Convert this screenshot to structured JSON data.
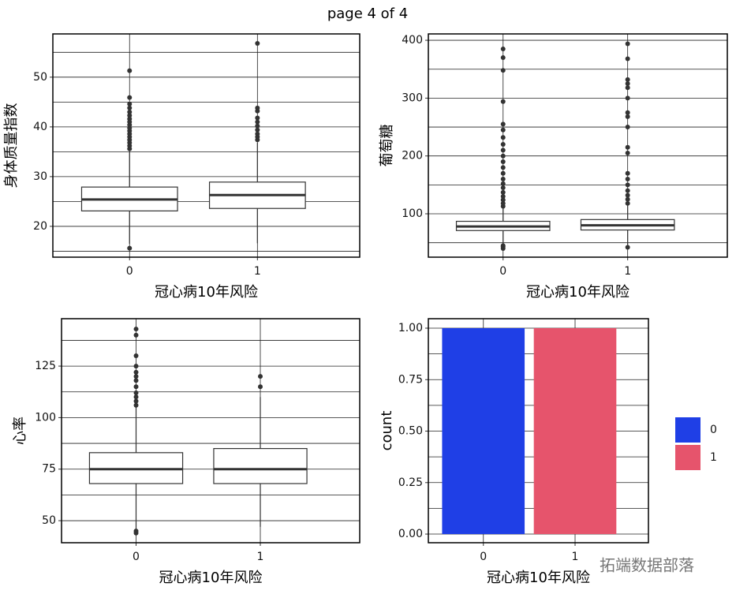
{
  "title": "page 4 of 4",
  "watermark": "拓端数据部落",
  "chart_data": [
    {
      "type": "boxplot",
      "xlabel": "冠心病10年风险",
      "ylabel": "身体质量指数",
      "categories": [
        "0",
        "1"
      ],
      "boxes": [
        {
          "whisker_low": 16.5,
          "q1": 23.1,
          "median": 25.4,
          "q3": 27.9,
          "whisker_high": 35.1,
          "outliers": [
            15.6,
            35.6,
            36.2,
            36.8,
            37.4,
            38.0,
            38.6,
            39.2,
            39.8,
            40.4,
            41.0,
            41.6,
            42.3,
            43.0,
            43.8,
            44.6,
            45.9,
            51.3
          ]
        },
        {
          "whisker_low": 16.6,
          "q1": 23.6,
          "median": 26.3,
          "q3": 28.9,
          "whisker_high": 36.8,
          "outliers": [
            37.4,
            38.0,
            38.6,
            39.4,
            40.2,
            41.0,
            41.8,
            43.2,
            43.8,
            56.8
          ]
        }
      ],
      "box_color": "#333333",
      "ylim": [
        13.8,
        58.7
      ],
      "yticks": [
        20,
        30,
        40,
        50
      ],
      "minor_yticks": [
        15,
        25,
        35,
        45,
        55
      ],
      "grid": true
    },
    {
      "type": "boxplot",
      "xlabel": "冠心病10年风险",
      "ylabel": "葡萄糖",
      "categories": [
        "0",
        "1"
      ],
      "boxes": [
        {
          "whisker_low": 47,
          "q1": 71,
          "median": 78,
          "q3": 87,
          "whisker_high": 110,
          "outliers": [
            40,
            43,
            45,
            113,
            118,
            124,
            130,
            137,
            145,
            152,
            160,
            170,
            180,
            190,
            200,
            210,
            220,
            232,
            245,
            255,
            294,
            348,
            370,
            385
          ]
        },
        {
          "whisker_low": 45,
          "q1": 72,
          "median": 80,
          "q3": 90,
          "whisker_high": 115,
          "outliers": [
            42,
            118,
            125,
            132,
            140,
            150,
            160,
            170,
            205,
            215,
            250,
            268,
            275,
            300,
            318,
            325,
            332,
            368,
            394
          ]
        }
      ],
      "box_color": "#333333",
      "ylim": [
        25,
        411
      ],
      "yticks": [
        100,
        200,
        300,
        400
      ],
      "minor_yticks": [
        50,
        150,
        250,
        350
      ],
      "grid": true
    },
    {
      "type": "boxplot",
      "xlabel": "冠心病10年风险",
      "ylabel": "心率",
      "categories": [
        "0",
        "1"
      ],
      "boxes": [
        {
          "whisker_low": 46,
          "q1": 68,
          "median": 75,
          "q3": 83,
          "whisker_high": 105,
          "outliers": [
            44,
            45,
            106,
            108,
            110,
            112,
            115,
            118,
            120,
            122,
            125,
            130,
            140,
            143
          ]
        },
        {
          "whisker_low": 47,
          "q1": 68,
          "median": 75,
          "q3": 85,
          "whisker_high": 110,
          "outliers": [
            115,
            120
          ]
        }
      ],
      "box_color": "#333333",
      "ylim": [
        39.3,
        148
      ],
      "yticks": [
        50,
        75,
        100,
        125
      ],
      "minor_yticks": [
        62.5,
        87.5,
        112.5,
        137.5
      ],
      "grid": true
    },
    {
      "type": "bar",
      "xlabel": "冠心病10年风险",
      "ylabel": "count",
      "categories": [
        "0",
        "1"
      ],
      "values": [
        1,
        1
      ],
      "colors": [
        "#1f3fe6",
        "#e6546c"
      ],
      "ylim": [
        -0.042,
        1.046
      ],
      "yticks": [
        {
          "value": 0,
          "label": "0.00"
        },
        {
          "value": 0.25,
          "label": "0.25"
        },
        {
          "value": 0.5,
          "label": "0.50"
        },
        {
          "value": 0.75,
          "label": "0.75"
        },
        {
          "value": 1,
          "label": "1.00"
        }
      ],
      "minor_yticks": [
        0.125,
        0.375,
        0.625,
        0.875
      ],
      "grid": true,
      "legend": "right"
    }
  ]
}
